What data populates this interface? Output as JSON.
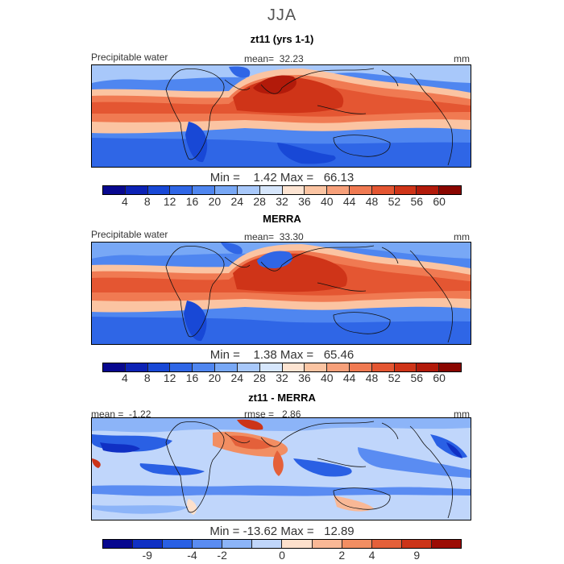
{
  "season": "JJA",
  "panel1": {
    "title": "zt11 (yrs 1-1)",
    "variable": "Precipitable water",
    "mean_label": "mean=",
    "mean_value": "32.23",
    "units": "mm",
    "min_label": "Min =",
    "min_value": "1.42",
    "max_label": "Max =",
    "max_value": "66.13"
  },
  "panel2": {
    "title": "MERRA",
    "variable": "Precipitable water",
    "mean_label": "mean=",
    "mean_value": "33.30",
    "units": "mm",
    "min_label": "Min =",
    "min_value": "1.38",
    "max_label": "Max =",
    "max_value": "65.46"
  },
  "panel3": {
    "title": "zt11 - MERRA",
    "mean_label": "mean =",
    "mean_value": "-1.22",
    "rmse_label": "rmse =",
    "rmse_value": "2.86",
    "units": "mm",
    "min_label": "Min =",
    "min_value": "-13.62",
    "max_label": "Max =",
    "max_value": "12.89"
  },
  "colorbar_abs": {
    "ticks": [
      "4",
      "8",
      "12",
      "16",
      "20",
      "24",
      "28",
      "32",
      "36",
      "40",
      "44",
      "48",
      "52",
      "56",
      "60"
    ],
    "colors": [
      "#08088f",
      "#0c22b5",
      "#1848d6",
      "#2f66e6",
      "#4f86f0",
      "#78a8f6",
      "#a8c8fa",
      "#d6e6fc",
      "#fde4d2",
      "#fbc4a2",
      "#f7a07a",
      "#f07a52",
      "#e45632",
      "#cf3418",
      "#b21a0a",
      "#8a0600"
    ]
  },
  "colorbar_diff": {
    "ticks": [
      "-9",
      "-4",
      "-2",
      "0",
      "2",
      "4",
      "9"
    ],
    "colors": [
      "#08088f",
      "#1030c4",
      "#2a60e4",
      "#5a8cf2",
      "#8cb4f8",
      "#c0d6fb",
      "#fde0cc",
      "#f9b896",
      "#f28e62",
      "#e4603a",
      "#cc3418",
      "#9c0c04"
    ]
  }
}
